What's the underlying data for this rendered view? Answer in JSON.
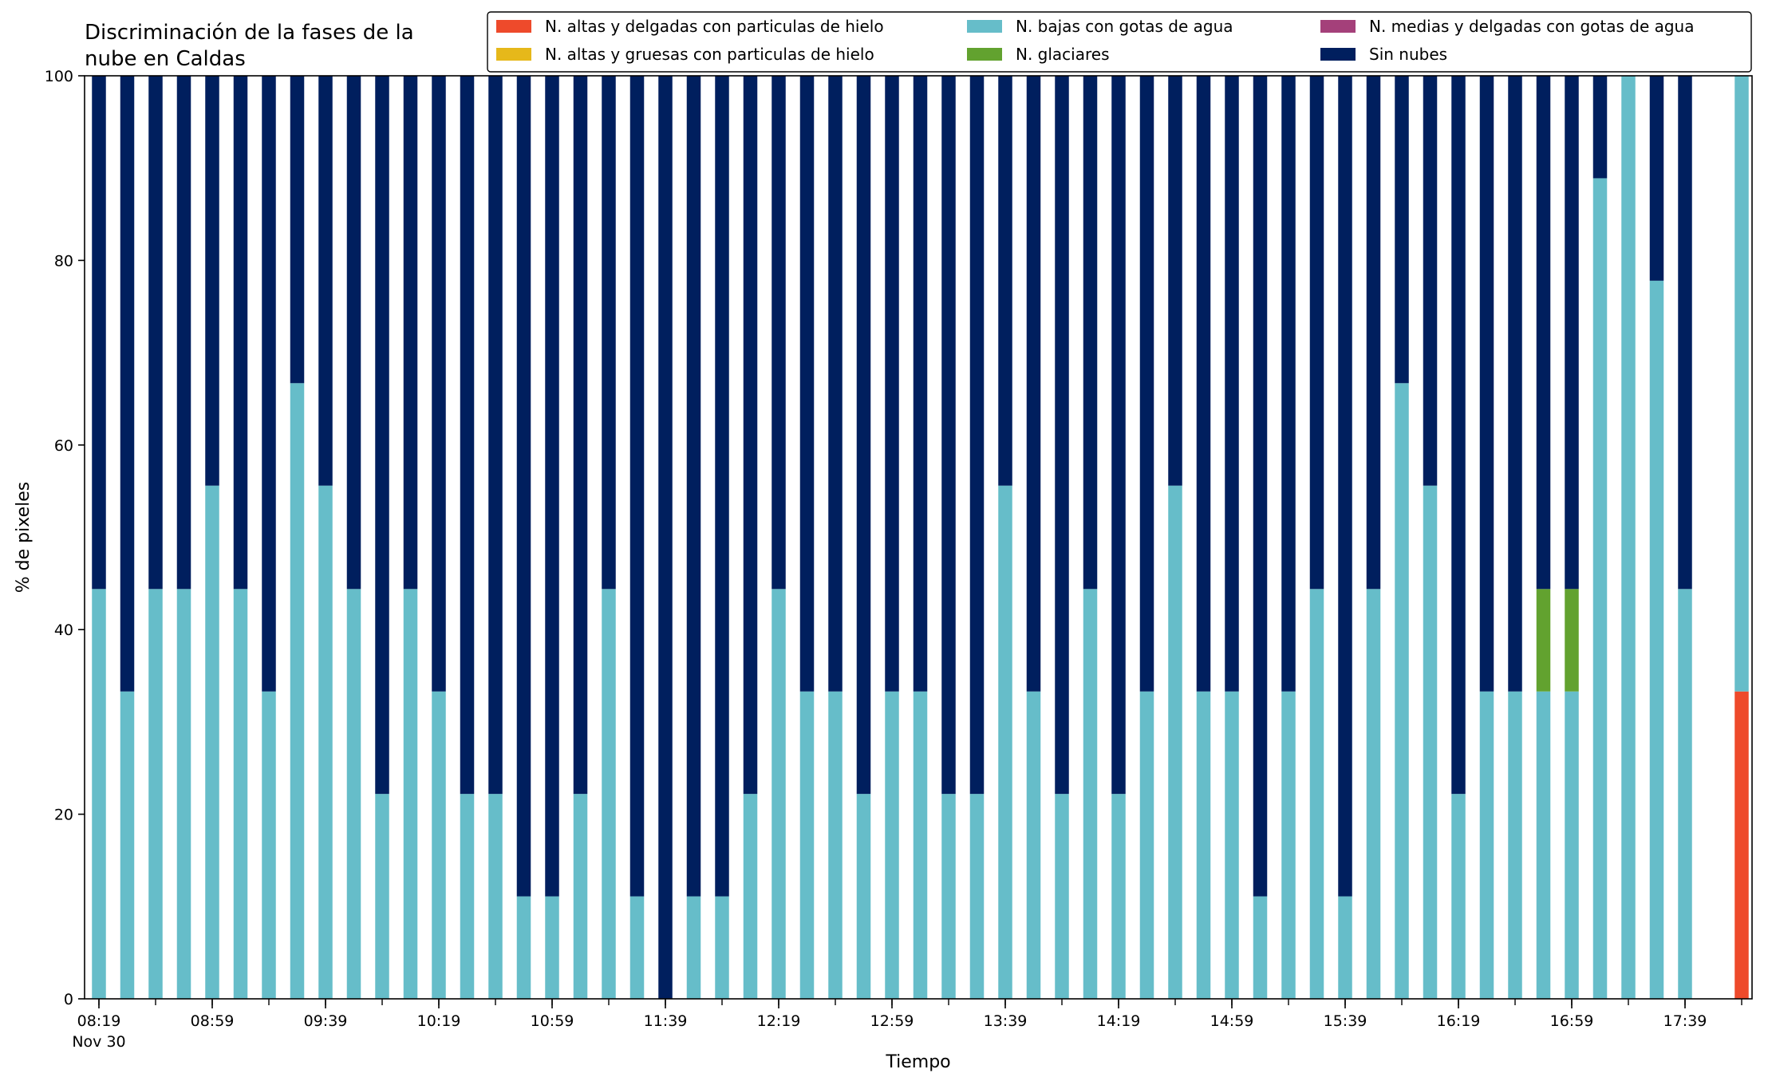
{
  "chart_data": {
    "type": "bar",
    "stacked": true,
    "title": "Discriminación de la fases de la\nnube en Caldas",
    "xlabel": "Tiempo",
    "ylabel": "% de pixeles",
    "ylim": [
      0,
      100
    ],
    "yticks": [
      0,
      20,
      40,
      60,
      80,
      100
    ],
    "grid": false,
    "legend_position": "top-right",
    "x_tick_labels": [
      {
        "index": 0,
        "label": "08:19",
        "sub": "Nov 30"
      },
      {
        "index": 4,
        "label": "08:59"
      },
      {
        "index": 8,
        "label": "09:39"
      },
      {
        "index": 12,
        "label": "10:19"
      },
      {
        "index": 16,
        "label": "10:59"
      },
      {
        "index": 20,
        "label": "11:39"
      },
      {
        "index": 24,
        "label": "12:19"
      },
      {
        "index": 28,
        "label": "12:59"
      },
      {
        "index": 32,
        "label": "13:39"
      },
      {
        "index": 36,
        "label": "14:19"
      },
      {
        "index": 40,
        "label": "14:59"
      },
      {
        "index": 44,
        "label": "15:39"
      },
      {
        "index": 48,
        "label": "16:19"
      },
      {
        "index": 52,
        "label": "16:59"
      },
      {
        "index": 56,
        "label": "17:39"
      }
    ],
    "series": [
      {
        "name": "N. altas y delgadas con particulas de hielo",
        "color": "#ee4a2b",
        "values": [
          0,
          0,
          0,
          0,
          0,
          0,
          0,
          0,
          0,
          0,
          0,
          0,
          0,
          0,
          0,
          0,
          0,
          0,
          0,
          0,
          0,
          0,
          0,
          0,
          0,
          0,
          0,
          0,
          0,
          0,
          0,
          0,
          0,
          0,
          0,
          0,
          0,
          0,
          0,
          0,
          0,
          0,
          0,
          0,
          0,
          0,
          0,
          0,
          0,
          0,
          0,
          0,
          0,
          0,
          0,
          0,
          0,
          0,
          33.3
        ]
      },
      {
        "name": "N. altas y gruesas con particulas de hielo",
        "color": "#e6b81a",
        "values": [
          0,
          0,
          0,
          0,
          0,
          0,
          0,
          0,
          0,
          0,
          0,
          0,
          0,
          0,
          0,
          0,
          0,
          0,
          0,
          0,
          0,
          0,
          0,
          0,
          0,
          0,
          0,
          0,
          0,
          0,
          0,
          0,
          0,
          0,
          0,
          0,
          0,
          0,
          0,
          0,
          0,
          0,
          0,
          0,
          0,
          0,
          0,
          0,
          0,
          0,
          0,
          0,
          0,
          0,
          0,
          0,
          0,
          0,
          0
        ]
      },
      {
        "name": "N. bajas con gotas de agua",
        "color": "#66bdc9",
        "values": [
          44.4,
          33.3,
          44.4,
          44.4,
          55.6,
          44.4,
          33.3,
          66.7,
          55.6,
          44.4,
          22.2,
          44.4,
          33.3,
          22.2,
          22.2,
          11.1,
          11.1,
          22.2,
          44.4,
          11.1,
          0,
          11.1,
          11.1,
          22.2,
          44.4,
          33.3,
          33.3,
          22.2,
          33.3,
          33.3,
          22.2,
          22.2,
          55.6,
          33.3,
          22.2,
          44.4,
          22.2,
          33.3,
          55.6,
          33.3,
          33.3,
          11.1,
          33.3,
          44.4,
          11.1,
          44.4,
          66.7,
          55.6,
          22.2,
          33.3,
          33.3,
          33.3,
          33.3,
          88.9,
          100,
          77.8,
          44.4,
          0,
          66.7
        ]
      },
      {
        "name": "N. glaciares",
        "color": "#62a22f",
        "values": [
          0,
          0,
          0,
          0,
          0,
          0,
          0,
          0,
          0,
          0,
          0,
          0,
          0,
          0,
          0,
          0,
          0,
          0,
          0,
          0,
          0,
          0,
          0,
          0,
          0,
          0,
          0,
          0,
          0,
          0,
          0,
          0,
          0,
          0,
          0,
          0,
          0,
          0,
          0,
          0,
          0,
          0,
          0,
          0,
          0,
          0,
          0,
          0,
          0,
          0,
          0,
          11.1,
          11.1,
          0,
          0,
          0,
          0,
          0,
          0
        ]
      },
      {
        "name": "N. medias y delgadas con gotas de agua",
        "color": "#a4407a",
        "values": [
          0,
          0,
          0,
          0,
          0,
          0,
          0,
          0,
          0,
          0,
          0,
          0,
          0,
          0,
          0,
          0,
          0,
          0,
          0,
          0,
          0,
          0,
          0,
          0,
          0,
          0,
          0,
          0,
          0,
          0,
          0,
          0,
          0,
          0,
          0,
          0,
          0,
          0,
          0,
          0,
          0,
          0,
          0,
          0,
          0,
          0,
          0,
          0,
          0,
          0,
          0,
          0,
          0,
          0,
          0,
          0,
          0,
          0,
          0
        ]
      },
      {
        "name": "Sin nubes",
        "color": "#001f5e",
        "values": [
          55.6,
          66.7,
          55.6,
          55.6,
          44.4,
          55.6,
          66.7,
          33.3,
          44.4,
          55.6,
          77.8,
          55.6,
          66.7,
          77.8,
          77.8,
          88.9,
          88.9,
          77.8,
          55.6,
          88.9,
          100,
          88.9,
          88.9,
          77.8,
          55.6,
          66.7,
          66.7,
          77.8,
          66.7,
          66.7,
          77.8,
          77.8,
          44.4,
          66.7,
          77.8,
          55.6,
          77.8,
          66.7,
          44.4,
          66.7,
          66.7,
          88.9,
          66.7,
          55.6,
          88.9,
          55.6,
          33.3,
          44.4,
          77.8,
          66.7,
          66.7,
          55.6,
          55.6,
          11.1,
          0,
          22.2,
          55.6,
          0,
          0
        ]
      }
    ],
    "legend_order": [
      0,
      1,
      2,
      3,
      4,
      5
    ]
  }
}
